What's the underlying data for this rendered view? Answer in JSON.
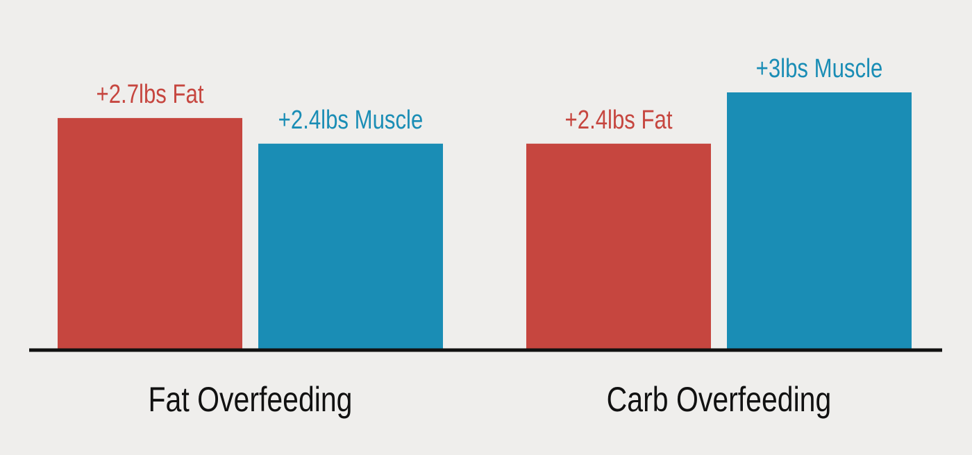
{
  "chart_data": {
    "type": "bar",
    "categories": [
      "Fat Overfeeding",
      "Carb Overfeeding"
    ],
    "series": [
      {
        "name": "",
        "values": [
          2.7,
          2.4
        ],
        "labels": [
          "+2.7lbs Fat",
          "+2.4lbs Fat"
        ],
        "color": "#c6463f"
      },
      {
        "name": "",
        "values": [
          2.4,
          3
        ],
        "labels": [
          "+2.4lbs Muscle",
          "+3lbs Muscle"
        ],
        "color": "#1a8db5"
      }
    ],
    "title": "",
    "xlabel": "",
    "ylabel": "",
    "ylim": [
      0,
      3.4
    ],
    "grid": false,
    "legend": "none"
  },
  "colors": {
    "background": "#efeeec",
    "axis": "#111111",
    "category_text": "#111111"
  }
}
